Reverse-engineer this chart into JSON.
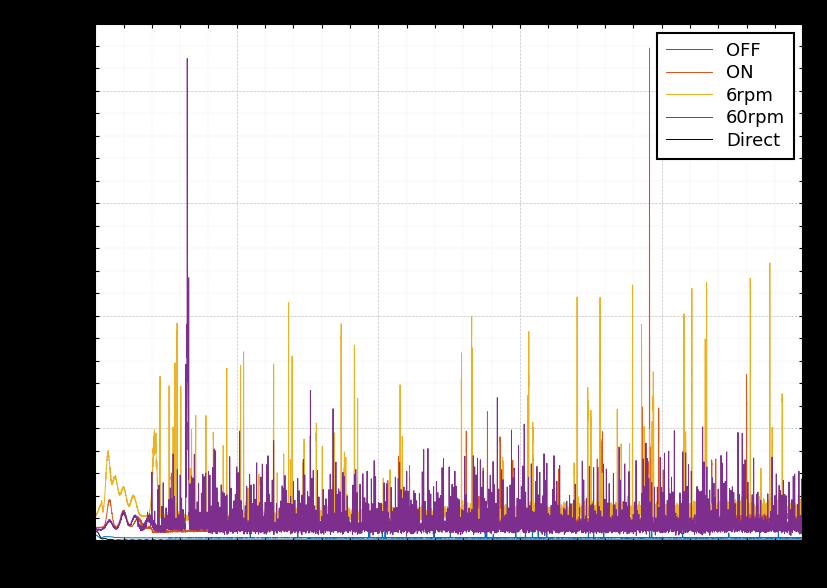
{
  "legend_labels": [
    "OFF",
    "ON",
    "6rpm",
    "60rpm",
    "Direct"
  ],
  "line_colors": [
    "#0072BD",
    "#D95319",
    "#EDB120",
    "#7E2F8E",
    "#000000"
  ],
  "background_color": "#ffffff",
  "outer_background": "#000000",
  "grid_color": "#bbbbbb",
  "legend_loc": "upper right",
  "figsize": [
    8.28,
    5.88
  ],
  "dpi": 100,
  "f_min": 0,
  "f_max": 500,
  "lw": 0.7
}
